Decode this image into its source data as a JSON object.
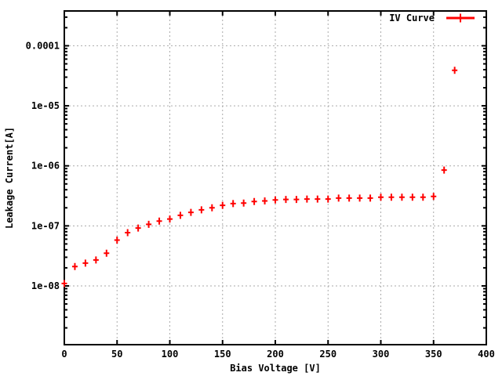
{
  "chart_data": {
    "type": "scatter",
    "title": "",
    "xlabel": "Bias Voltage [V]",
    "ylabel": "Leakage Current[A]",
    "legend_position": "top-right-inside",
    "grid": true,
    "x_scale": "linear",
    "y_scale": "log",
    "xlim": [
      0,
      400
    ],
    "ylim": [
      1.05e-09,
      0.00038
    ],
    "x_ticks": [
      {
        "label": "0",
        "value": 0
      },
      {
        "label": "50",
        "value": 50
      },
      {
        "label": "100",
        "value": 100
      },
      {
        "label": "150",
        "value": 150
      },
      {
        "label": "200",
        "value": 200
      },
      {
        "label": "250",
        "value": 250
      },
      {
        "label": "300",
        "value": 300
      },
      {
        "label": "350",
        "value": 350
      },
      {
        "label": "400",
        "value": 400
      }
    ],
    "y_ticks": [
      {
        "label": "0.0001",
        "value": 0.0001
      },
      {
        "label": "1e-05",
        "value": 1e-05
      },
      {
        "label": "1e-06",
        "value": 1e-06
      },
      {
        "label": "1e-07",
        "value": 1e-07
      },
      {
        "label": "1e-08",
        "value": 1e-08
      }
    ],
    "series": [
      {
        "name": "IV Curve",
        "marker": "plus",
        "color": "#ff0000",
        "points": [
          [
            0,
            1.1e-08
          ],
          [
            10,
            2.1e-08
          ],
          [
            20,
            2.4e-08
          ],
          [
            30,
            2.7e-08
          ],
          [
            40,
            3.5e-08
          ],
          [
            50,
            5.8e-08
          ],
          [
            60,
            7.7e-08
          ],
          [
            70,
            9.2e-08
          ],
          [
            80,
            1.06e-07
          ],
          [
            90,
            1.2e-07
          ],
          [
            100,
            1.3e-07
          ],
          [
            110,
            1.5e-07
          ],
          [
            120,
            1.68e-07
          ],
          [
            130,
            1.85e-07
          ],
          [
            140,
            2e-07
          ],
          [
            150,
            2.2e-07
          ],
          [
            160,
            2.35e-07
          ],
          [
            170,
            2.4e-07
          ],
          [
            180,
            2.55e-07
          ],
          [
            190,
            2.6e-07
          ],
          [
            200,
            2.7e-07
          ],
          [
            210,
            2.75e-07
          ],
          [
            220,
            2.75e-07
          ],
          [
            230,
            2.8e-07
          ],
          [
            240,
            2.8e-07
          ],
          [
            250,
            2.8e-07
          ],
          [
            260,
            2.9e-07
          ],
          [
            270,
            2.9e-07
          ],
          [
            280,
            2.9e-07
          ],
          [
            290,
            2.9e-07
          ],
          [
            300,
            3e-07
          ],
          [
            310,
            3e-07
          ],
          [
            320,
            3e-07
          ],
          [
            330,
            3e-07
          ],
          [
            340,
            3e-07
          ],
          [
            350,
            3.1e-07
          ],
          [
            360,
            8.5e-07
          ],
          [
            370,
            3.9e-05
          ]
        ]
      }
    ]
  },
  "colors": {
    "series": "#ff0000",
    "grid": "#aaaaaa",
    "axis": "#000000",
    "background": "#ffffff"
  }
}
